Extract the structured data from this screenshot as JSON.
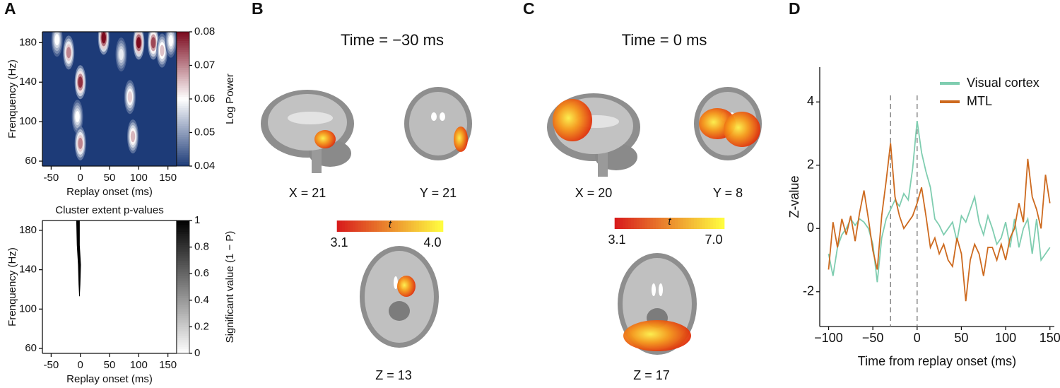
{
  "panel_labels": [
    "A",
    "B",
    "C",
    "D"
  ],
  "chart_data": [
    {
      "type": "contour",
      "xlabel": "Replay onset (ms)",
      "ylabel": "Frenquency (Hz)",
      "xlim": [
        -65,
        165
      ],
      "ylim": [
        55,
        191
      ],
      "xticks": [
        -50,
        0,
        50,
        100,
        150
      ],
      "yticks": [
        60,
        100,
        140,
        180
      ],
      "colorbar": {
        "label": "Log Power",
        "lim": [
          0.04,
          0.08
        ],
        "ticks": [
          0.04,
          0.05,
          0.06,
          0.07,
          0.08
        ],
        "colors": [
          "#1d3b78",
          "#ffffff",
          "#7c0a1e"
        ]
      },
      "peaks": {
        "x": [
          -40,
          -20,
          -5,
          0,
          0,
          40,
          70,
          85,
          90,
          100,
          125,
          140,
          155
        ],
        "y": [
          183,
          170,
          105,
          140,
          78,
          185,
          168,
          125,
          85,
          180,
          180,
          172,
          182
        ],
        "values": [
          0.06,
          0.07,
          0.06,
          0.077,
          0.07,
          0.08,
          0.058,
          0.064,
          0.066,
          0.08,
          0.075,
          0.065,
          0.06
        ]
      }
    },
    {
      "type": "cluster",
      "title": "Cluster extent p-values",
      "xlabel": "Replay onset (ms)",
      "ylabel": "Frenquency (Hz)",
      "xlim": [
        -65,
        165
      ],
      "ylim": [
        55,
        190
      ],
      "xticks": [
        -50,
        0,
        50,
        100,
        150
      ],
      "yticks": [
        60,
        100,
        140,
        180
      ],
      "colorbar": {
        "label": "Significant value (1 − P)",
        "lim": [
          0,
          1
        ],
        "ticks": [
          0,
          0.2,
          0.4,
          0.6,
          0.8,
          1
        ],
        "colors": [
          "#ffffff",
          "#000000"
        ]
      },
      "cluster": {
        "y": [
          190,
          165,
          145,
          125,
          113
        ],
        "x_start": [
          -7,
          -6,
          -4,
          -3,
          -2
        ],
        "x_end": [
          -1,
          -1,
          1,
          0,
          -1
        ],
        "value": 1
      }
    },
    {
      "type": "line",
      "xlabel": "Time from replay onset (ms)",
      "ylabel": "Z-value",
      "xlim": [
        -110,
        155
      ],
      "ylim": [
        -3.1,
        5.1
      ],
      "xticks": [
        {
          "value": -100,
          "label": "−100"
        },
        {
          "value": -50,
          "label": "−50"
        },
        0,
        50,
        100,
        150
      ],
      "yticks": [
        -2,
        0,
        2,
        4
      ],
      "vlines": [
        -30,
        0
      ],
      "legend": "upper right",
      "x": [
        -100,
        -95,
        -90,
        -85,
        -80,
        -75,
        -70,
        -65,
        -60,
        -55,
        -50,
        -45,
        -40,
        -35,
        -30,
        -25,
        -20,
        -15,
        -10,
        -5,
        0,
        5,
        10,
        15,
        20,
        25,
        30,
        35,
        40,
        45,
        50,
        55,
        60,
        65,
        70,
        75,
        80,
        85,
        90,
        95,
        100,
        105,
        110,
        115,
        120,
        125,
        130,
        135,
        140,
        145,
        150
      ],
      "series": [
        {
          "name": "Visual cortex",
          "color": "#7fcdb0",
          "values": [
            -0.8,
            -1.5,
            -0.6,
            -0.2,
            0.0,
            0.3,
            0.1,
            0.3,
            0.2,
            0.0,
            -0.5,
            -1.7,
            -0.3,
            0.3,
            0.6,
            0.9,
            0.7,
            1.1,
            0.9,
            1.9,
            3.4,
            2.4,
            1.8,
            1.3,
            0.3,
            0.1,
            -0.2,
            0.0,
            0.2,
            -0.4,
            0.4,
            0.2,
            0.6,
            1.0,
            0.2,
            -0.2,
            0.4,
            0.0,
            -0.5,
            -0.3,
            0.2,
            -0.6,
            0.3,
            -0.6,
            0.0,
            0.3,
            -0.8,
            0.3,
            -1.0,
            -0.8,
            -0.6
          ]
        },
        {
          "name": "MTL",
          "color": "#cd6a1f",
          "values": [
            -1.3,
            0.2,
            -0.6,
            0.3,
            -0.2,
            0.4,
            -0.4,
            0.5,
            1.2,
            0.3,
            -0.7,
            -1.3,
            0.4,
            1.5,
            2.7,
            1.0,
            0.4,
            0.0,
            0.2,
            0.4,
            0.8,
            1.3,
            0.4,
            -0.6,
            -0.3,
            -0.8,
            -0.5,
            -1.0,
            -1.2,
            -0.3,
            -0.8,
            -2.3,
            -1.0,
            -0.5,
            -0.8,
            -1.5,
            -0.6,
            -0.6,
            -1.0,
            -0.5,
            -1.0,
            -0.3,
            0.0,
            0.8,
            0.2,
            2.2,
            1.0,
            0.6,
            0.0,
            1.7,
            0.8
          ]
        }
      ]
    }
  ],
  "brain_panels": [
    {
      "title": "Time = −30 ms",
      "views": [
        "X = 21",
        "Y = 21",
        "Z = 13"
      ],
      "colorbar": {
        "label": "t",
        "lim": [
          3.1,
          4
        ],
        "ticks": [
          3.1,
          {
            "value": 4,
            "label": "4.0"
          }
        ],
        "colors": [
          "#d7191c",
          "#ffff40"
        ]
      }
    },
    {
      "title": "Time = 0 ms",
      "views": [
        "X = 20",
        "Y = 8",
        "Z = 17"
      ],
      "colorbar": {
        "label": "t",
        "lim": [
          3.1,
          7
        ],
        "ticks": [
          3.1,
          {
            "value": 7,
            "label": "7.0"
          }
        ],
        "colors": [
          "#d7191c",
          "#ffff40"
        ]
      }
    }
  ]
}
